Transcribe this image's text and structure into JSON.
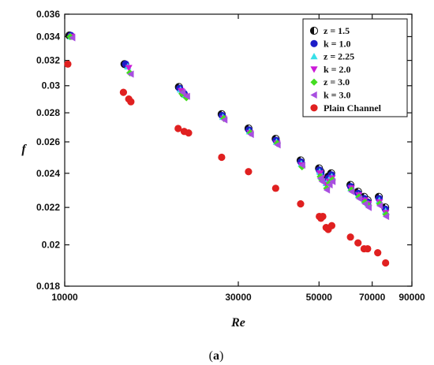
{
  "chart_data": {
    "type": "scatter",
    "xlabel": "Re",
    "ylabel": "f",
    "caption_pre": "(",
    "caption_letter": "a",
    "caption_post": ")",
    "xscale": "log",
    "yscale": "log",
    "xlim": [
      10000,
      90000
    ],
    "ylim": [
      0.018,
      0.036
    ],
    "xticks": [
      10000,
      30000,
      50000,
      70000,
      90000
    ],
    "xtick_labels": [
      "10000",
      "30000",
      "50000",
      "70000",
      "90000"
    ],
    "yticks": [
      0.018,
      0.02,
      0.022,
      0.024,
      0.026,
      0.028,
      0.03,
      0.032,
      0.034,
      0.036
    ],
    "ytick_labels": [
      "0.018",
      "0.02",
      "0.022",
      "0.024",
      "0.026",
      "0.028",
      "0.03",
      "0.032",
      "0.034",
      "0.036"
    ],
    "grid": false,
    "legend_position": "top-right",
    "series": [
      {
        "name": "z = 1.5",
        "marker": "half-circle",
        "color": "#000000",
        "x": [
          10300,
          14600,
          20600,
          21200,
          27000,
          32000,
          38000,
          44500,
          50000,
          50500,
          52000,
          53000,
          54000,
          61000,
          64000,
          66500,
          68000,
          73000,
          76000
        ],
        "y": [
          0.0341,
          0.0317,
          0.0299,
          0.0294,
          0.0279,
          0.0269,
          0.0262,
          0.0248,
          0.0243,
          0.0241,
          0.0236,
          0.0238,
          0.024,
          0.0233,
          0.0229,
          0.0226,
          0.0224,
          0.0226,
          0.022
        ]
      },
      {
        "name": "k = 1.0",
        "marker": "circle",
        "color": "#1c1cc8",
        "x": [
          10400,
          14700,
          20700,
          21300,
          27100,
          32100,
          38100,
          44600,
          50100,
          50600,
          52100,
          53100,
          54100,
          61100,
          64100,
          66600,
          68100,
          73100,
          76100
        ],
        "y": [
          0.0341,
          0.0317,
          0.0298,
          0.0294,
          0.0278,
          0.0268,
          0.0261,
          0.0247,
          0.0242,
          0.024,
          0.0235,
          0.0237,
          0.0239,
          0.0232,
          0.0228,
          0.0225,
          0.0223,
          0.0225,
          0.0219
        ]
      },
      {
        "name": "z = 2.25",
        "marker": "triangle-up",
        "color": "#38e0e8",
        "x": [
          10400,
          14900,
          20800,
          21400,
          27200,
          32200,
          38200,
          44700,
          50200,
          50700,
          52300,
          53200,
          54200,
          61200,
          64200,
          66700,
          68200,
          73200,
          76200
        ],
        "y": [
          0.034,
          0.0315,
          0.0297,
          0.0293,
          0.0277,
          0.0267,
          0.026,
          0.0246,
          0.0241,
          0.0238,
          0.0234,
          0.0236,
          0.0238,
          0.0231,
          0.0227,
          0.0224,
          0.0222,
          0.0224,
          0.0218
        ]
      },
      {
        "name": "k = 2.0",
        "marker": "triangle-down",
        "color": "#cc1ad8",
        "x": [
          10450,
          15000,
          20900,
          21500,
          27300,
          32300,
          38300,
          44800,
          50300,
          50800,
          52400,
          53300,
          54300,
          61300,
          64300,
          66800,
          68300,
          73300,
          76300
        ],
        "y": [
          0.034,
          0.0314,
          0.0296,
          0.0292,
          0.0276,
          0.0266,
          0.0259,
          0.0245,
          0.024,
          0.0237,
          0.0233,
          0.0235,
          0.0237,
          0.0231,
          0.0227,
          0.0224,
          0.0222,
          0.0223,
          0.0217
        ]
      },
      {
        "name": "z = 3.0",
        "marker": "diamond",
        "color": "#44dd22",
        "x": [
          10350,
          15100,
          21000,
          21600,
          27400,
          32400,
          38400,
          44900,
          50400,
          50900,
          52500,
          53400,
          54400,
          61400,
          64400,
          66900,
          68400,
          73400,
          76400
        ],
        "y": [
          0.034,
          0.031,
          0.0294,
          0.0291,
          0.0276,
          0.0266,
          0.0259,
          0.0244,
          0.0238,
          0.0236,
          0.0231,
          0.0234,
          0.0236,
          0.023,
          0.0226,
          0.0223,
          0.0221,
          0.0222,
          0.0216
        ]
      },
      {
        "name": "k = 3.0",
        "marker": "triangle-left",
        "color": "#a84ee0",
        "x": [
          10500,
          15200,
          21100,
          21700,
          27500,
          32500,
          38500,
          45000,
          50500,
          51000,
          52600,
          53500,
          54500,
          61500,
          64500,
          67000,
          68500,
          73500,
          76500
        ],
        "y": [
          0.0339,
          0.0309,
          0.0295,
          0.0292,
          0.0275,
          0.0265,
          0.0258,
          0.0245,
          0.0237,
          0.0235,
          0.023,
          0.0233,
          0.0235,
          0.0229,
          0.0225,
          0.0222,
          0.022,
          0.0221,
          0.0215
        ]
      },
      {
        "name": "Plain Channel",
        "marker": "circle",
        "color": "#e02020",
        "x": [
          10200,
          14500,
          15000,
          15200,
          20500,
          21300,
          21900,
          27000,
          32000,
          38000,
          44500,
          50100,
          50600,
          51200,
          52300,
          53000,
          54200,
          61000,
          64000,
          66500,
          68000,
          72500,
          76200
        ],
        "y": [
          0.0317,
          0.0295,
          0.029,
          0.0288,
          0.0269,
          0.0267,
          0.0266,
          0.025,
          0.0241,
          0.0231,
          0.0222,
          0.0215,
          0.0214,
          0.0215,
          0.0209,
          0.0208,
          0.021,
          0.0204,
          0.0201,
          0.0198,
          0.0198,
          0.0196,
          0.0191
        ]
      }
    ]
  }
}
